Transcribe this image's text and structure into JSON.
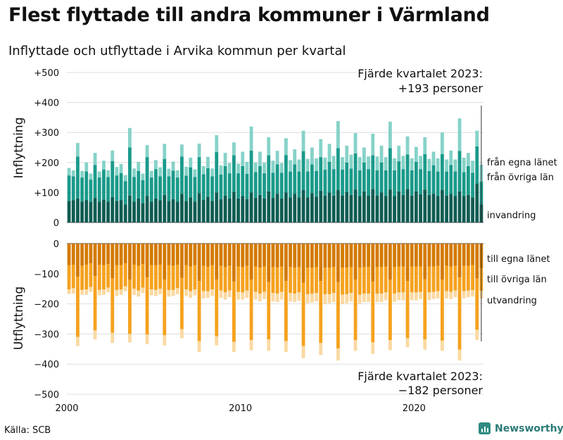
{
  "title": "Flest flyttade till andra kommuner i Värmland",
  "subtitle": "Inflyttade och utflyttade i Arvika kommun per kvartal",
  "source": "Källa: SCB",
  "brand": "Newsworthy",
  "colors": {
    "in_own_county": "#0f5c52",
    "in_other_counties": "#1a9a8a",
    "in_immigration": "#86d2c8",
    "out_own_county": "#d47a00",
    "out_other_counties": "#f5a21f",
    "out_emigration": "#fad9a2",
    "grid": "#dddddd",
    "brand": "#2e8b84"
  },
  "chart_data": [
    {
      "type": "bar",
      "stacked": true,
      "title": "",
      "ylabel": "Inflyttning",
      "ylim": [
        0,
        500
      ],
      "yticks": [
        "0",
        "+100",
        "+200",
        "+300",
        "+400",
        "+500"
      ],
      "xticks": [
        "2000",
        "2010",
        "2020"
      ],
      "grid": true,
      "period": "kvartal, Q1 2000 – Q4 2023",
      "annotation": [
        "Fjärde kvartalet 2023:",
        "+193 personer"
      ],
      "series": [
        {
          "name": "från egna länet",
          "values": [
            72,
            74,
            80,
            70,
            75,
            68,
            82,
            70,
            76,
            70,
            85,
            72,
            75,
            60,
            90,
            70,
            80,
            65,
            88,
            70,
            80,
            74,
            92,
            72,
            78,
            70,
            95,
            72,
            84,
            70,
            98,
            75,
            86,
            72,
            100,
            78,
            90,
            80,
            102,
            80,
            88,
            78,
            100,
            82,
            92,
            80,
            104,
            82,
            96,
            80,
            100,
            84,
            96,
            84,
            108,
            84,
            98,
            86,
            106,
            90,
            100,
            90,
            108,
            90,
            102,
            92,
            110,
            88,
            104,
            90,
            112,
            90,
            100,
            88,
            110,
            88,
            104,
            92,
            112,
            90,
            104,
            94,
            110,
            92,
            96,
            88,
            108,
            90,
            96,
            88,
            104,
            88,
            92,
            84,
            130,
            60
          ]
        },
        {
          "name": "från övriga län",
          "values": [
            85,
            80,
            140,
            80,
            95,
            75,
            110,
            80,
            100,
            82,
            120,
            85,
            90,
            78,
            160,
            82,
            92,
            76,
            130,
            80,
            98,
            80,
            120,
            82,
            95,
            80,
            125,
            84,
            100,
            82,
            120,
            86,
            95,
            82,
            135,
            82,
            98,
            84,
            122,
            84,
            100,
            84,
            140,
            86,
            96,
            84,
            120,
            84,
            98,
            86,
            125,
            86,
            98,
            86,
            130,
            86,
            96,
            86,
            112,
            86,
            102,
            88,
            140,
            86,
            98,
            88,
            120,
            86,
            96,
            88,
            112,
            84,
            100,
            86,
            138,
            86,
            100,
            86,
            115,
            84,
            98,
            84,
            118,
            80,
            95,
            82,
            120,
            80,
            96,
            82,
            135,
            80,
            96,
            82,
            124,
            76
          ]
        },
        {
          "name": "invandring",
          "values": [
            25,
            20,
            45,
            22,
            30,
            20,
            40,
            20,
            30,
            22,
            35,
            28,
            30,
            20,
            65,
            28,
            30,
            22,
            40,
            22,
            30,
            30,
            50,
            25,
            30,
            24,
            40,
            30,
            32,
            25,
            45,
            27,
            38,
            26,
            56,
            30,
            44,
            34,
            43,
            32,
            48,
            40,
            80,
            32,
            48,
            35,
            60,
            40,
            45,
            32,
            56,
            38,
            50,
            40,
            68,
            42,
            56,
            42,
            60,
            40,
            60,
            44,
            90,
            42,
            56,
            46,
            68,
            44,
            50,
            42,
            72,
            46,
            56,
            44,
            88,
            40,
            52,
            44,
            60,
            40,
            50,
            44,
            56,
            40,
            45,
            44,
            72,
            40,
            48,
            40,
            108,
            48,
            44,
            40,
            52,
            57
          ]
        }
      ]
    },
    {
      "type": "bar",
      "stacked": true,
      "title": "",
      "ylabel": "Utflyttning",
      "ylim": [
        -500,
        0
      ],
      "yticks": [
        "0",
        "−100",
        "−200",
        "−300",
        "−400",
        "−500"
      ],
      "xticks": [
        "2000",
        "2010",
        "2020"
      ],
      "grid": true,
      "period": "kvartal, Q1 2000 – Q4 2023",
      "annotation": [
        "Fjärde kvartalet 2023:",
        "−182 personer"
      ],
      "series": [
        {
          "name": "till egna länet",
          "values": [
            -72,
            -70,
            -110,
            -74,
            -70,
            -66,
            -108,
            -70,
            -72,
            -68,
            -116,
            -72,
            -72,
            -66,
            -120,
            -70,
            -74,
            -68,
            -112,
            -72,
            -72,
            -70,
            -120,
            -72,
            -74,
            -70,
            -114,
            -72,
            -76,
            -72,
            -124,
            -74,
            -76,
            -72,
            -120,
            -74,
            -78,
            -74,
            -126,
            -76,
            -78,
            -74,
            -120,
            -76,
            -80,
            -76,
            -128,
            -78,
            -80,
            -76,
            -124,
            -78,
            -80,
            -78,
            -130,
            -80,
            -80,
            -78,
            -124,
            -80,
            -80,
            -78,
            -128,
            -80,
            -80,
            -78,
            -120,
            -80,
            -78,
            -78,
            -126,
            -78,
            -78,
            -76,
            -120,
            -78,
            -76,
            -76,
            -124,
            -76,
            -76,
            -76,
            -118,
            -76,
            -76,
            -74,
            -120,
            -74,
            -76,
            -74,
            -112,
            -74,
            -74,
            -72,
            -116,
            -82
          ]
        },
        {
          "name": "till övriga län",
          "values": [
            -80,
            -78,
            -200,
            -80,
            -82,
            -78,
            -180,
            -84,
            -80,
            -78,
            -180,
            -82,
            -80,
            -76,
            -180,
            -80,
            -82,
            -78,
            -190,
            -80,
            -82,
            -80,
            -184,
            -82,
            -80,
            -78,
            -170,
            -80,
            -82,
            -80,
            -200,
            -84,
            -82,
            -80,
            -188,
            -82,
            -84,
            -82,
            -200,
            -84,
            -84,
            -82,
            -200,
            -84,
            -86,
            -84,
            -190,
            -86,
            -86,
            -84,
            -200,
            -86,
            -86,
            -84,
            -210,
            -88,
            -86,
            -86,
            -206,
            -88,
            -88,
            -86,
            -220,
            -90,
            -88,
            -86,
            -200,
            -90,
            -88,
            -88,
            -202,
            -88,
            -88,
            -86,
            -200,
            -88,
            -86,
            -86,
            -190,
            -86,
            -86,
            -84,
            -200,
            -86,
            -84,
            -84,
            -202,
            -84,
            -84,
            -82,
            -240,
            -84,
            -82,
            -82,
            -170,
            -75
          ]
        },
        {
          "name": "utvandring",
          "values": [
            -15,
            -18,
            -30,
            -16,
            -18,
            -16,
            -30,
            -18,
            -18,
            -16,
            -34,
            -20,
            -18,
            -16,
            -28,
            -20,
            -20,
            -18,
            -32,
            -20,
            -20,
            -18,
            -34,
            -22,
            -20,
            -20,
            -30,
            -22,
            -22,
            -20,
            -36,
            -24,
            -22,
            -22,
            -30,
            -24,
            -24,
            -22,
            -34,
            -26,
            -24,
            -24,
            -34,
            -26,
            -26,
            -24,
            -38,
            -28,
            -28,
            -26,
            -36,
            -28,
            -28,
            -28,
            -40,
            -30,
            -30,
            -28,
            -40,
            -32,
            -30,
            -30,
            -40,
            -30,
            -30,
            -28,
            -36,
            -30,
            -28,
            -28,
            -38,
            -28,
            -28,
            -26,
            -34,
            -28,
            -26,
            -26,
            -30,
            -26,
            -26,
            -24,
            -34,
            -26,
            -24,
            -24,
            -34,
            -24,
            -24,
            -22,
            -36,
            -24,
            -22,
            -22,
            -34,
            -25
          ]
        }
      ]
    }
  ]
}
